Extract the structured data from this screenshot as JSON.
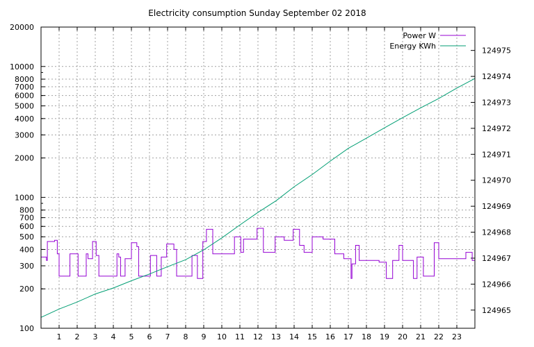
{
  "chart_data": {
    "type": "line",
    "title": "Electricity consumption Sunday September 02 2018",
    "xlabel": "",
    "ylabel": "",
    "x_ticks": [
      "1",
      "2",
      "3",
      "4",
      "5",
      "6",
      "7",
      "8",
      "9",
      "10",
      "11",
      "12",
      "13",
      "14",
      "15",
      "16",
      "17",
      "18",
      "19",
      "20",
      "21",
      "22",
      "23"
    ],
    "xlim": [
      0,
      24
    ],
    "y_left": {
      "scale": "log",
      "lim": [
        100,
        20000
      ],
      "ticks": [
        100,
        200,
        300,
        400,
        500,
        600,
        700,
        800,
        1000,
        2000,
        3000,
        4000,
        5000,
        6000,
        7000,
        8000,
        10000,
        20000
      ],
      "tick_labels": [
        "100",
        "200",
        "300",
        "400",
        "500",
        "600",
        "700",
        "800",
        "1000",
        "2000",
        "3000",
        "4000",
        "5000",
        "6000",
        "7000",
        "8000",
        "10000",
        "20000"
      ]
    },
    "y_right": {
      "scale": "linear",
      "lim": [
        124964.3,
        124975.9
      ],
      "ticks": [
        124965,
        124966,
        124967,
        124968,
        124969,
        124970,
        124971,
        124972,
        124973,
        124974,
        124975
      ],
      "tick_labels": [
        "124965",
        "124966",
        "124967",
        "124968",
        "124969",
        "124970",
        "124971",
        "124972",
        "124973",
        "124974",
        "124975"
      ]
    },
    "grid": true,
    "legend_position": "top-right",
    "series": [
      {
        "name": "Power W",
        "axis": "left",
        "color": "#9400d3",
        "step": true,
        "x": [
          0.0,
          0.3,
          0.35,
          0.75,
          0.9,
          1.0,
          1.1,
          1.6,
          1.65,
          2.05,
          2.5,
          2.6,
          2.85,
          3.05,
          3.2,
          3.3,
          3.5,
          4.2,
          4.3,
          4.4,
          4.65,
          5.0,
          5.3,
          5.4,
          5.6,
          6.05,
          6.4,
          6.65,
          6.95,
          7.35,
          7.5,
          7.65,
          8.35,
          8.65,
          8.95,
          9.15,
          9.5,
          9.85,
          10.7,
          11.05,
          11.2,
          11.95,
          12.3,
          12.95,
          13.45,
          13.95,
          14.3,
          14.55,
          15.0,
          15.6,
          15.9,
          16.25,
          16.75,
          17.15,
          17.2,
          17.4,
          17.6,
          17.7,
          18.7,
          19.1,
          19.45,
          19.8,
          20.0,
          20.6,
          20.8,
          21.15,
          21.55,
          21.75,
          22.0,
          23.05,
          23.5,
          23.85,
          24.0
        ],
        "y": [
          350,
          330,
          460,
          470,
          370,
          250,
          250,
          370,
          370,
          250,
          370,
          340,
          460,
          360,
          250,
          250,
          250,
          370,
          350,
          250,
          340,
          450,
          420,
          250,
          250,
          360,
          250,
          350,
          440,
          400,
          250,
          250,
          360,
          240,
          460,
          570,
          370,
          370,
          500,
          380,
          480,
          580,
          380,
          500,
          470,
          570,
          430,
          380,
          500,
          480,
          480,
          370,
          340,
          240,
          310,
          430,
          330,
          330,
          320,
          240,
          330,
          430,
          330,
          240,
          350,
          250,
          250,
          450,
          340,
          340,
          380,
          330,
          480
        ]
      },
      {
        "name": "Energy KWh",
        "axis": "right",
        "color": "#009e73",
        "step": false,
        "x": [
          0,
          1,
          2,
          3,
          4,
          5,
          6,
          7,
          8,
          9,
          10,
          11,
          12,
          13,
          14,
          15,
          16,
          17,
          18,
          19,
          20,
          21,
          22,
          23,
          24
        ],
        "y": [
          124964.72,
          124965.04,
          124965.31,
          124965.62,
          124965.85,
          124966.13,
          124966.39,
          124966.67,
          124966.94,
          124967.32,
          124967.78,
          124968.28,
          124968.76,
          124969.21,
          124969.75,
          124970.22,
          124970.74,
          124971.23,
          124971.62,
          124972.02,
          124972.41,
          124972.79,
          124973.15,
          124973.55,
          124973.92
        ]
      }
    ]
  }
}
